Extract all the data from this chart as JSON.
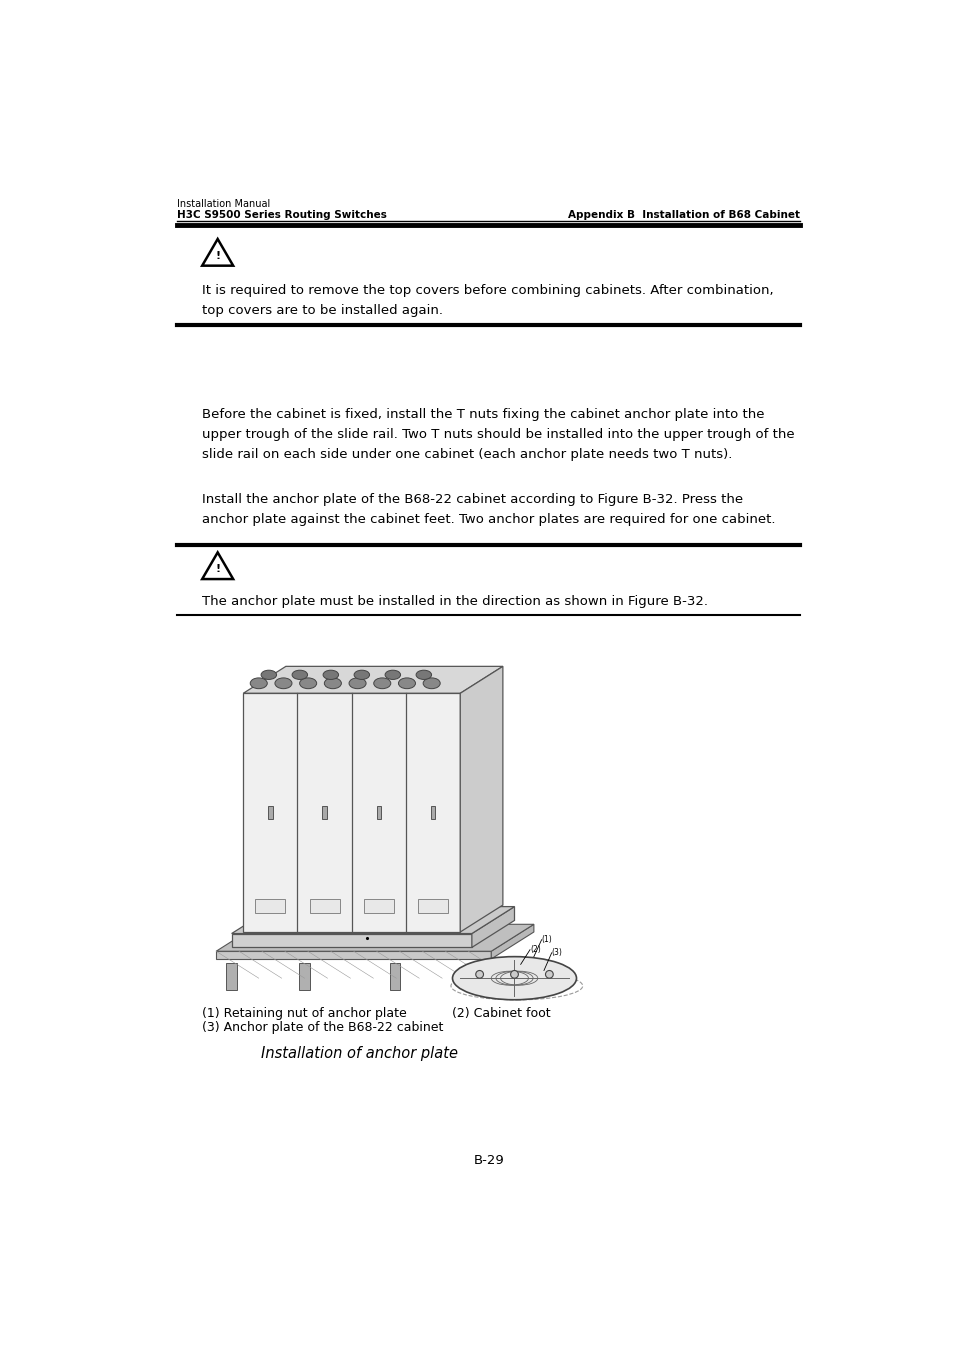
{
  "bg_color": "#ffffff",
  "header_line1": "Installation Manual",
  "header_line2": "H3C S9500 Series Routing Switches",
  "header_right": "Appendix B  Installation of B68 Cabinet",
  "warning_text1": "It is required to remove the top covers before combining cabinets. After combination,\ntop covers are to be installed again.",
  "para1": "Before the cabinet is fixed, install the T nuts fixing the cabinet anchor plate into the\nupper trough of the slide rail. Two T nuts should be installed into the upper trough of the\nslide rail on each side under one cabinet (each anchor plate needs two T nuts).",
  "para2": "Install the anchor plate of the B68-22 cabinet according to Figure B-32. Press the\nanchor plate against the cabinet feet. Two anchor plates are required for one cabinet.",
  "warning_text2": "The anchor plate must be installed in the direction as shown in Figure B-32.",
  "caption1": "(1) Retaining nut of anchor plate",
  "caption2": "(2) Cabinet foot",
  "caption3": "(3) Anchor plate of the B68-22 cabinet",
  "fig_caption": "Installation of anchor plate",
  "page_num": "B-29",
  "text_color": "#000000",
  "line_color": "#000000",
  "font_size_header_small": 7.0,
  "font_size_header_large": 7.5,
  "font_size_body": 9.5,
  "font_size_caption": 9.0,
  "font_size_fig_caption": 10.5,
  "font_size_page": 9.5
}
